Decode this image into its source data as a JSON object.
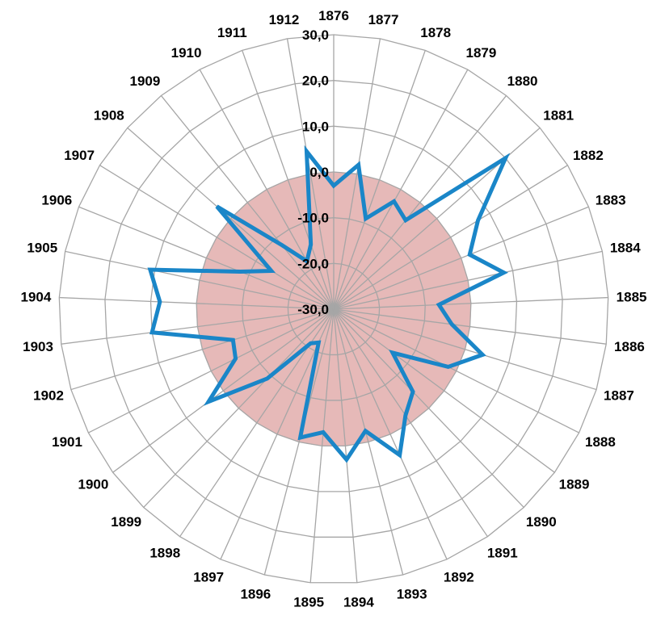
{
  "chart_data": {
    "type": "radar",
    "categories": [
      "1876",
      "1877",
      "1878",
      "1879",
      "1880",
      "1881",
      "1882",
      "1883",
      "1884",
      "1885",
      "1886",
      "1887",
      "1888",
      "1889",
      "1890",
      "1891",
      "1892",
      "1893",
      "1894",
      "1895",
      "1896",
      "1897",
      "1898",
      "1899",
      "1900",
      "1901",
      "1902",
      "1903",
      "1904",
      "1905",
      "1906",
      "1907",
      "1908",
      "1909",
      "1910",
      "1911",
      "1912"
    ],
    "series": [
      {
        "values": [
          -3.0,
          2.0,
          -9.0,
          -3.0,
          -5.0,
          20.0,
          7.0,
          2.0,
          8.0,
          -7.0,
          -4.0,
          4.0,
          -2.0,
          -14.0,
          -5.0,
          -2.0,
          5.0,
          -2.5,
          3.0,
          -3.0,
          -1.0,
          -22.0,
          -21.0,
          -9.0,
          4.0,
          -6.0,
          -7.0,
          10.0,
          8.0,
          11.0,
          -8.0,
          -14.0,
          4.0,
          -12.0,
          -18.0,
          -15.0,
          5.0
        ],
        "color": "#1a86c8"
      }
    ],
    "band": {
      "from": -30.0,
      "to": 0.0,
      "color": "#e6b9b8"
    },
    "rlim": [
      -30.0,
      30.0
    ],
    "ticks": [
      "-30,0",
      "-20,0",
      "-10,0",
      "0,0",
      "10,0",
      "20,0",
      "30,0"
    ],
    "grid": true,
    "legend": "none"
  }
}
